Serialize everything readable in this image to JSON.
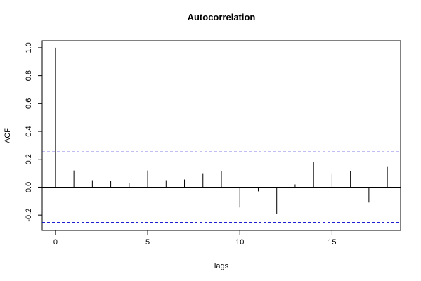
{
  "chart_data": {
    "type": "acf",
    "title": "Autocorrelation",
    "xlabel": "lags",
    "ylabel": "ACF",
    "x": [
      0,
      1,
      2,
      3,
      4,
      5,
      6,
      7,
      8,
      9,
      10,
      11,
      12,
      13,
      14,
      15,
      16,
      17,
      18
    ],
    "values": [
      1.0,
      0.12,
      0.05,
      0.045,
      0.03,
      0.12,
      0.05,
      0.055,
      0.1,
      0.115,
      -0.145,
      -0.03,
      -0.19,
      0.02,
      0.18,
      0.1,
      0.115,
      -0.11,
      0.145
    ],
    "color": "#000000",
    "conf_lines": [
      0.253,
      -0.253
    ],
    "conf_color": "#0000cc",
    "xlim": [
      -0.72,
      18.72
    ],
    "ylim": [
      -0.31,
      1.05
    ],
    "xticks": [
      0,
      5,
      10,
      15
    ],
    "yticks": [
      -0.2,
      {
        "value": 0,
        "label": "0.0"
      },
      0.2,
      0.4,
      0.6,
      0.8,
      {
        "value": 1,
        "label": "1.0"
      }
    ]
  }
}
